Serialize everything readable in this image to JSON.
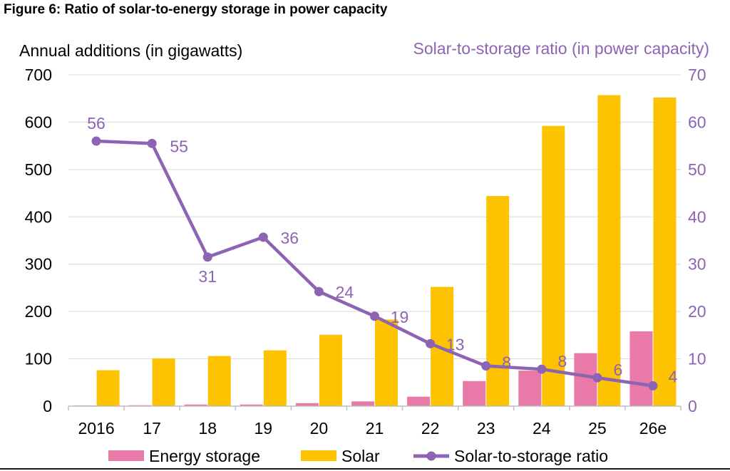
{
  "figure_title": "Figure 6:  Ratio of solar-to-energy storage in power capacity",
  "chart_data": {
    "type": "bar",
    "categories": [
      "2016",
      "17",
      "18",
      "19",
      "20",
      "21",
      "22",
      "23",
      "24",
      "25",
      "26e"
    ],
    "ylabel": "Annual additions (in gigawatts)",
    "y2label": "Solar-to-storage ratio (in power capacity)",
    "ylim": [
      0,
      700
    ],
    "y2lim": [
      0,
      70
    ],
    "yticks": [
      0,
      100,
      200,
      300,
      400,
      500,
      600,
      700
    ],
    "y2ticks": [
      0,
      10,
      20,
      30,
      40,
      50,
      60,
      70
    ],
    "grid": true,
    "legend_position": "bottom",
    "series": [
      {
        "name": "Energy storage",
        "kind": "bar",
        "color": "#e879a8",
        "values": [
          1.5,
          2,
          3.5,
          3.5,
          6.5,
          10,
          20,
          53,
          75,
          112,
          158
        ]
      },
      {
        "name": "Solar",
        "kind": "bar",
        "color": "#fdc300",
        "values": [
          76,
          101,
          106,
          118,
          151,
          183,
          252,
          444,
          592,
          657,
          652
        ]
      },
      {
        "name": "Solar-to-storage ratio",
        "kind": "line",
        "axis": "right",
        "color": "#8d63b3",
        "values": [
          56,
          55.5,
          31.5,
          35.7,
          24.2,
          19,
          13.2,
          8.5,
          7.8,
          6,
          4.3
        ],
        "labels": [
          "56",
          "55",
          "31",
          "36",
          "24",
          "19",
          "13",
          "8",
          "8",
          "6",
          "4"
        ]
      }
    ]
  }
}
